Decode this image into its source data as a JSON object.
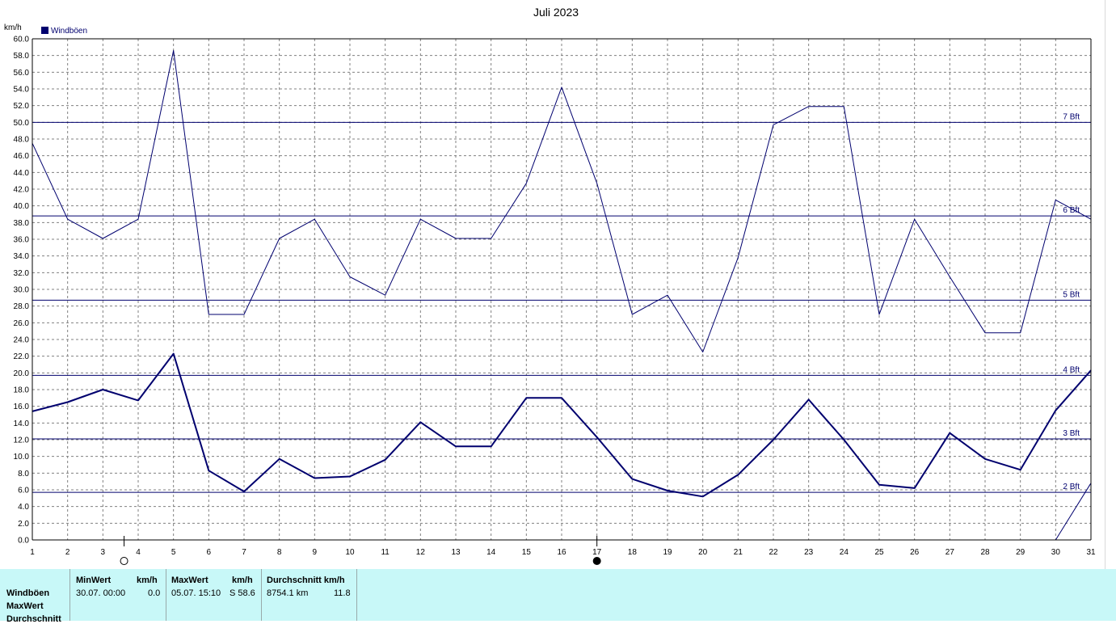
{
  "chart_data": {
    "type": "line",
    "title": "Juli 2023",
    "ylabel": "km/h",
    "ylim": [
      0,
      60
    ],
    "ytick_step": 2,
    "grid": true,
    "legend": "top-left",
    "x": [
      1,
      2,
      3,
      4,
      5,
      6,
      7,
      8,
      9,
      10,
      11,
      12,
      13,
      14,
      15,
      16,
      17,
      18,
      19,
      20,
      21,
      22,
      23,
      24,
      25,
      26,
      27,
      28,
      29,
      30,
      31
    ],
    "series": [
      {
        "name": "Windböen",
        "color": "#00006e",
        "values": [
          15.4,
          16.5,
          18.0,
          16.7,
          22.3,
          8.3,
          5.8,
          9.7,
          7.4,
          7.6,
          9.6,
          14.1,
          11.2,
          11.2,
          17.0,
          17.0,
          12.3,
          7.3,
          5.9,
          5.2,
          7.8,
          12.0,
          16.8,
          12.0,
          6.6,
          6.2,
          12.8,
          9.7,
          8.4,
          15.5,
          20.3
        ]
      },
      {
        "values": [
          47.5,
          38.4,
          36.1,
          38.4,
          58.6,
          27.0,
          27.0,
          36.1,
          38.4,
          31.5,
          29.3,
          38.4,
          36.1,
          36.1,
          42.7,
          54.2,
          42.7,
          27.0,
          29.3,
          22.5,
          33.8,
          49.7,
          51.9,
          51.9,
          27.0,
          38.4,
          31.5,
          24.8,
          24.8,
          40.7,
          38.4
        ]
      },
      {
        "x": [
          30,
          31
        ],
        "values": [
          0.0,
          6.8
        ]
      }
    ],
    "reference_lines": [
      {
        "label": "7 Bft",
        "value": 50.0
      },
      {
        "label": "6 Bft",
        "value": 38.8
      },
      {
        "label": "5 Bft",
        "value": 28.7
      },
      {
        "label": "4 Bft",
        "value": 19.7
      },
      {
        "label": "3 Bft",
        "value": 12.1
      },
      {
        "label": "2 Bft",
        "value": 5.7
      }
    ],
    "moon_phases": [
      {
        "day": 3.6,
        "phase": "full"
      },
      {
        "day": 17.0,
        "phase": "new"
      }
    ]
  },
  "stats": {
    "headers": {
      "min": "MinWert",
      "kmh1": "km/h",
      "max": "MaxWert",
      "kmh2": "km/h",
      "avg": "Durchschnitt km/h"
    },
    "row_labels": [
      "Windböen",
      "MaxWert",
      "Durchschnitt"
    ],
    "min_time": "30.07.  00:00",
    "min_value": "0.0",
    "max_time": "05.07.  15:10",
    "max_value": "S 58.6",
    "distance": "8754.1 km",
    "avg_value": "11.8"
  }
}
